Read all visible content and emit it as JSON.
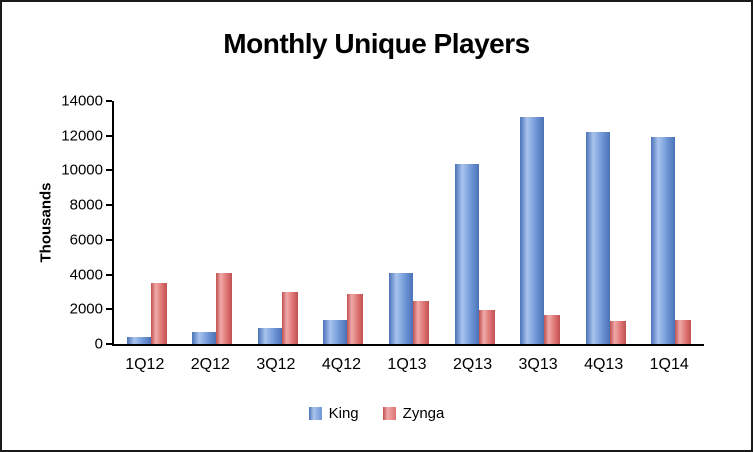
{
  "chart_data": {
    "type": "bar",
    "title": "Monthly Unique Players",
    "xlabel": "",
    "ylabel": "Thousands",
    "ylim": [
      0,
      14000
    ],
    "ytick_step": 2000,
    "yticks": [
      0,
      2000,
      4000,
      6000,
      8000,
      10000,
      12000,
      14000
    ],
    "grid": false,
    "legend_position": "bottom",
    "categories": [
      "1Q12",
      "2Q12",
      "3Q12",
      "4Q12",
      "1Q13",
      "2Q13",
      "3Q13",
      "4Q13",
      "1Q14"
    ],
    "series": [
      {
        "name": "King",
        "color": "#6e96d6",
        "color_light": "#a9c3ee",
        "color_dark": "#4a72b6",
        "values": [
          400,
          700,
          900,
          1400,
          4100,
          10400,
          13100,
          12200,
          11900
        ]
      },
      {
        "name": "Zynga",
        "color": "#dd7373",
        "color_light": "#f0a9a9",
        "color_dark": "#c05151",
        "values": [
          3500,
          4100,
          3000,
          2900,
          2500,
          1950,
          1650,
          1350,
          1400
        ]
      }
    ]
  }
}
